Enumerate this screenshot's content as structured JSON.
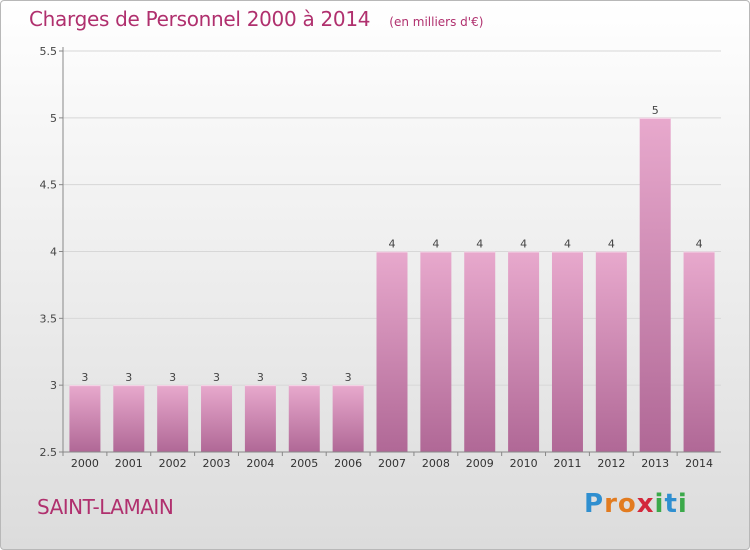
{
  "header": {
    "title": "Charges de Personnel 2000 à 2014",
    "subtitle": "(en milliers d'€)"
  },
  "footer": {
    "commune": "SAINT-LAMAIN",
    "brand": "Proxiti",
    "brand_letters": [
      {
        "ch": "P",
        "color": "#2f8fd0"
      },
      {
        "ch": "r",
        "color": "#e27b1f"
      },
      {
        "ch": "o",
        "color": "#e27b1f"
      },
      {
        "ch": "x",
        "color": "#d3283b"
      },
      {
        "ch": "i",
        "color": "#3ba94a"
      },
      {
        "ch": "t",
        "color": "#2f8fd0"
      },
      {
        "ch": "i",
        "color": "#3ba94a"
      }
    ]
  },
  "colors": {
    "title": "#b0306e",
    "bar_top": "#e8a9cd",
    "bar_bottom": "#b06896",
    "axis": "#888888",
    "grid": "#d7d7d7"
  },
  "chart_data": {
    "type": "bar",
    "title": "Charges de Personnel 2000 à 2014",
    "subtitle": "(en milliers d'€)",
    "categories": [
      "2000",
      "2001",
      "2002",
      "2003",
      "2004",
      "2005",
      "2006",
      "2007",
      "2008",
      "2009",
      "2010",
      "2011",
      "2012",
      "2013",
      "2014"
    ],
    "values": [
      3,
      3,
      3,
      3,
      3,
      3,
      3,
      4,
      4,
      4,
      4,
      4,
      4,
      5,
      4
    ],
    "data_labels": [
      "3",
      "3",
      "3",
      "3",
      "3",
      "3",
      "3",
      "4",
      "4",
      "4",
      "4",
      "4",
      "4",
      "5",
      "4"
    ],
    "ylim": [
      2.5,
      5.5
    ],
    "yticks": [
      2.5,
      3,
      3.5,
      4,
      4.5,
      5,
      5.5
    ],
    "ytick_labels": [
      "2.5",
      "3",
      "3.5",
      "4",
      "4.5",
      "5",
      "5.5"
    ],
    "grid": true,
    "legend": "none"
  }
}
